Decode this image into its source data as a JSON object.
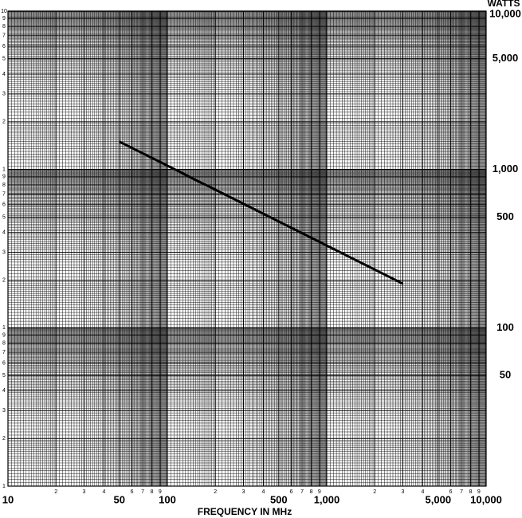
{
  "chart_data": {
    "type": "line",
    "x_label": "FREQUENCY IN MHz",
    "y_label": "WATTS",
    "x_log": true,
    "y_log": true,
    "xlim": [
      10,
      10000
    ],
    "ylim": [
      10,
      10000
    ],
    "x": [
      50,
      3000
    ],
    "series": [
      {
        "color": "#000000",
        "values": [
          1500,
          190
        ]
      }
    ],
    "xticks": [
      10,
      {
        "value": 20,
        "label": "2"
      },
      {
        "value": 30,
        "label": "3"
      },
      {
        "value": 40,
        "label": "4"
      },
      50,
      {
        "value": 60,
        "label": "6"
      },
      {
        "value": 70,
        "label": "7"
      },
      {
        "value": 80,
        "label": "8"
      },
      {
        "value": 90,
        "label": "9"
      },
      100,
      {
        "value": 200,
        "label": "2"
      },
      {
        "value": 300,
        "label": "3"
      },
      {
        "value": 400,
        "label": "4"
      },
      500,
      {
        "value": 600,
        "label": "6"
      },
      {
        "value": 700,
        "label": "7"
      },
      {
        "value": 800,
        "label": "8"
      },
      {
        "value": 900,
        "label": "9"
      },
      {
        "value": 1000,
        "label": "1,000"
      },
      {
        "value": 2000,
        "label": "2"
      },
      {
        "value": 3000,
        "label": "3"
      },
      {
        "value": 4000,
        "label": "4"
      },
      {
        "value": 5000,
        "label": "5,000"
      },
      {
        "value": 6000,
        "label": "6"
      },
      {
        "value": 7000,
        "label": "7"
      },
      {
        "value": 8000,
        "label": "8"
      },
      {
        "value": 9000,
        "label": "9"
      },
      {
        "value": 10000,
        "label": "10,000"
      }
    ],
    "yticks": [
      50,
      100,
      500,
      {
        "value": 1000,
        "label": "1,000"
      },
      {
        "value": 5000,
        "label": "5,000"
      },
      {
        "value": 10000,
        "label": "10,000"
      }
    ],
    "y_minor_ticks": [
      {
        "value": 10,
        "label": "1"
      },
      {
        "value": 20,
        "label": "2"
      },
      {
        "value": 30,
        "label": "3"
      },
      {
        "value": 40,
        "label": "4"
      },
      {
        "value": 50,
        "label": "5"
      },
      {
        "value": 60,
        "label": "6"
      },
      {
        "value": 70,
        "label": "7"
      },
      {
        "value": 80,
        "label": "8"
      },
      {
        "value": 90,
        "label": "9"
      },
      {
        "value": 100,
        "label": "1"
      },
      {
        "value": 200,
        "label": "2"
      },
      {
        "value": 300,
        "label": "3"
      },
      {
        "value": 400,
        "label": "4"
      },
      {
        "value": 500,
        "label": "5"
      },
      {
        "value": 600,
        "label": "6"
      },
      {
        "value": 700,
        "label": "7"
      },
      {
        "value": 800,
        "label": "8"
      },
      {
        "value": 900,
        "label": "9"
      },
      {
        "value": 1000,
        "label": "1"
      },
      {
        "value": 2000,
        "label": "2"
      },
      {
        "value": 3000,
        "label": "3"
      },
      {
        "value": 4000,
        "label": "4"
      },
      {
        "value": 5000,
        "label": "5"
      },
      {
        "value": 6000,
        "label": "6"
      },
      {
        "value": 7000,
        "label": "7"
      },
      {
        "value": 8000,
        "label": "8"
      },
      {
        "value": 9000,
        "label": "9"
      },
      {
        "value": 10000,
        "label": "10"
      }
    ],
    "grid": true
  }
}
